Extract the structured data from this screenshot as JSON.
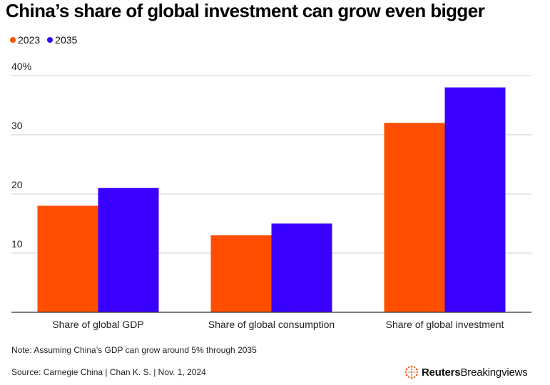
{
  "header": {
    "title": "China’s share of global investment can grow even bigger"
  },
  "legend": {
    "items": [
      {
        "label": "2023",
        "color": "#ff4e00"
      },
      {
        "label": "2035",
        "color": "#3a00ff"
      }
    ]
  },
  "chart_data": {
    "type": "bar",
    "title": "China’s share of global investment can grow even bigger",
    "categories": [
      "Share of global GDP",
      "Share of global consumption",
      "Share of global investment"
    ],
    "series": [
      {
        "name": "2023",
        "values": [
          18,
          13,
          32
        ],
        "color": "#ff4e00"
      },
      {
        "name": "2035",
        "values": [
          21,
          15,
          38
        ],
        "color": "#3a00ff"
      }
    ],
    "ylim": [
      0,
      40
    ],
    "yticks": [
      10,
      20,
      30,
      40
    ],
    "ytick_labels": [
      "10",
      "20",
      "30",
      "40%"
    ],
    "xlabel": "",
    "ylabel": "",
    "grid": true,
    "legend_position": "top-left"
  },
  "footer": {
    "note": "Note: Assuming China’s GDP can grow around 5% through 2035",
    "source": "Source: Carnegie China | Chan K. S. | Nov. 1, 2024",
    "brand_bold": "Reuters",
    "brand_light": "Breakingviews"
  }
}
